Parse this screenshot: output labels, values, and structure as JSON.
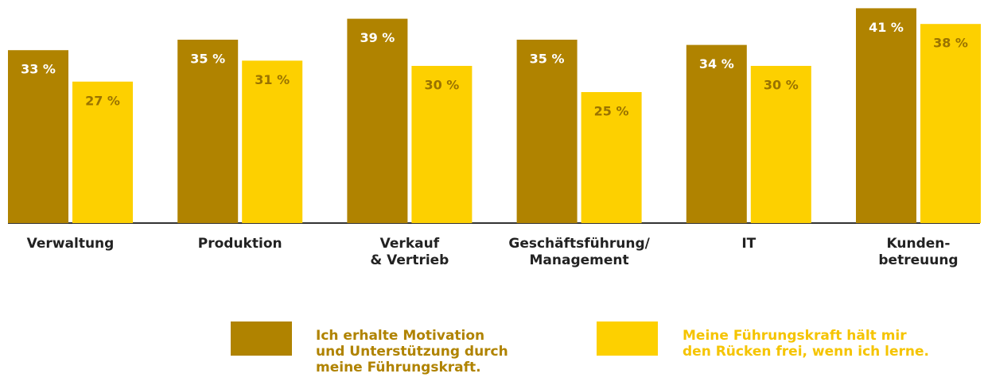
{
  "chart_data": {
    "type": "bar",
    "categories": [
      "Verwaltung",
      "Produktion",
      "Verkauf\n& Vertrieb",
      "Geschäftsführung/\nManagement",
      "IT",
      "Kunden-\nbetreuung"
    ],
    "series": [
      {
        "name": "Ich erhalte Motivation\nund Unterstützung durch\nmeine Führungskraft.",
        "color": "#b08300",
        "values": [
          33,
          35,
          39,
          35,
          34,
          41
        ],
        "value_labels": [
          "33 %",
          "35 %",
          "39 %",
          "35 %",
          "34 %",
          "41 %"
        ]
      },
      {
        "name": "Meine Führungskraft hält mir\nden Rücken frei, wenn ich lerne.",
        "color": "#fdd000",
        "values": [
          27,
          31,
          30,
          25,
          30,
          38
        ],
        "value_labels": [
          "27 %",
          "31 %",
          "30 %",
          "25 %",
          "30 %",
          "38 %"
        ]
      }
    ],
    "ylim": [
      0,
      42
    ]
  }
}
